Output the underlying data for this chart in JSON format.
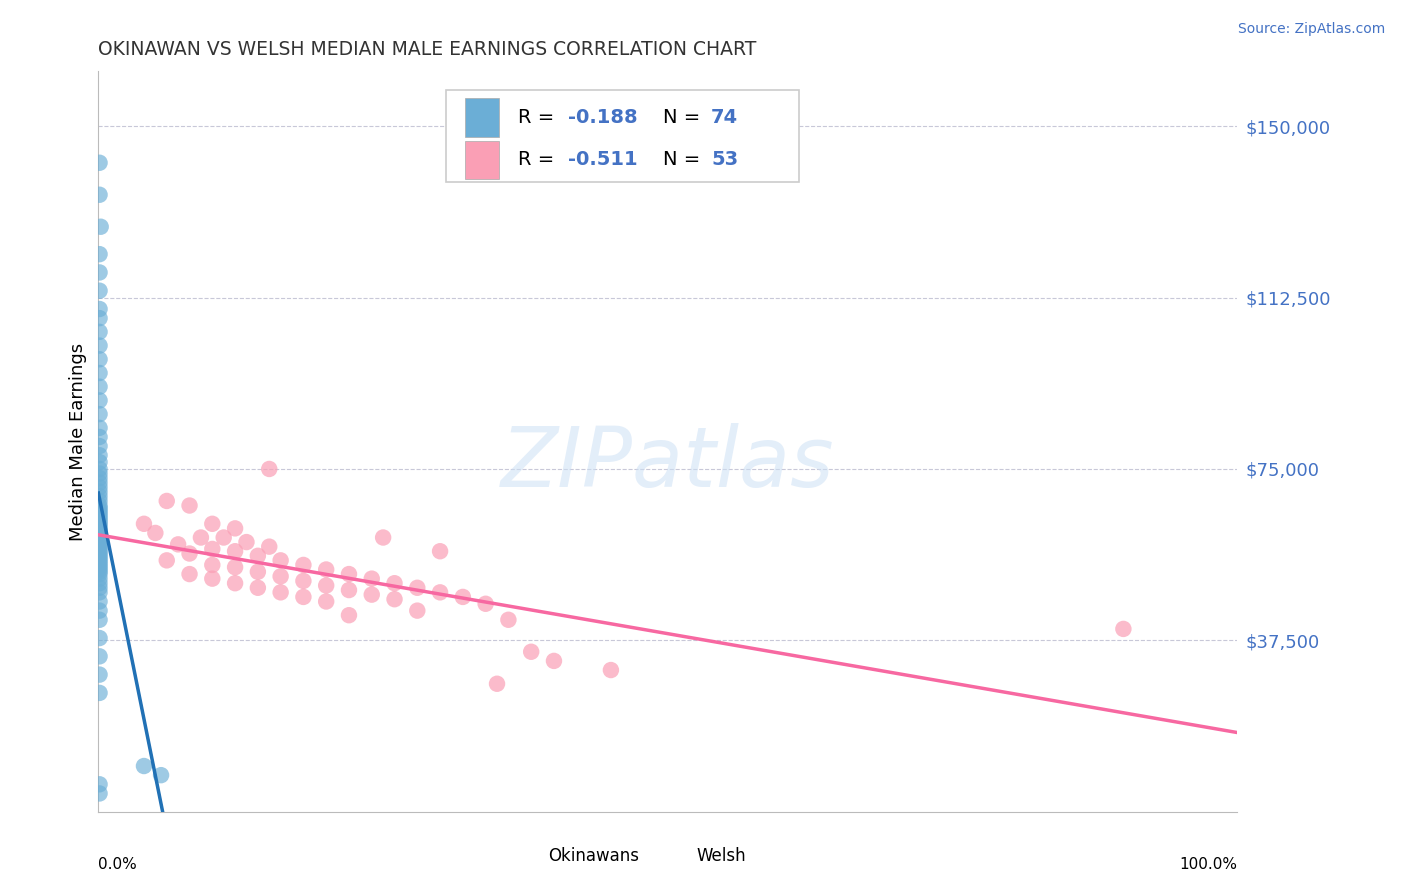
{
  "title": "OKINAWAN VS WELSH MEDIAN MALE EARNINGS CORRELATION CHART",
  "source": "Source: ZipAtlas.com",
  "ylabel": "Median Male Earnings",
  "ytick_values": [
    37500,
    75000,
    112500,
    150000
  ],
  "ytick_labels": [
    "$37,500",
    "$75,000",
    "$112,500",
    "$150,000"
  ],
  "ymin": 0,
  "ymax": 162000,
  "xmin": 0.0,
  "xmax": 1.0,
  "legend_label1": "Okinawans",
  "legend_label2": "Welsh",
  "legend_R1": "-0.188",
  "legend_N1": "74",
  "legend_R2": "-0.511",
  "legend_N2": "53",
  "watermark": "ZIPatlas",
  "okinawan_color": "#6baed6",
  "welsh_color": "#fa9fb5",
  "okinawan_line_color": "#2171b5",
  "welsh_line_color": "#f768a1",
  "background_color": "#ffffff",
  "grid_color": "#c8c8d8",
  "title_color": "#333333",
  "source_color": "#4472C4",
  "legend_value_color": "#4472C4",
  "okinawan_x": [
    0.001,
    0.001,
    0.002,
    0.001,
    0.001,
    0.001,
    0.001,
    0.001,
    0.001,
    0.001,
    0.001,
    0.001,
    0.001,
    0.001,
    0.001,
    0.001,
    0.001,
    0.001,
    0.001,
    0.001,
    0.001,
    0.001,
    0.001,
    0.001,
    0.001,
    0.001,
    0.001,
    0.001,
    0.001,
    0.001,
    0.001,
    0.001,
    0.001,
    0.001,
    0.001,
    0.001,
    0.001,
    0.001,
    0.001,
    0.001,
    0.001,
    0.001,
    0.001,
    0.001,
    0.001,
    0.001,
    0.001,
    0.001,
    0.001,
    0.001,
    0.001,
    0.001,
    0.001,
    0.001,
    0.001,
    0.001,
    0.001,
    0.001,
    0.001,
    0.001,
    0.001,
    0.001,
    0.001,
    0.001,
    0.001,
    0.001,
    0.001,
    0.001,
    0.001,
    0.001,
    0.04,
    0.055,
    0.001,
    0.001
  ],
  "okinawan_y": [
    142000,
    135000,
    128000,
    122000,
    118000,
    114000,
    110000,
    108000,
    105000,
    102000,
    99000,
    96000,
    93000,
    90000,
    87000,
    84000,
    82000,
    80000,
    78000,
    76500,
    75000,
    74000,
    73000,
    72000,
    71000,
    70000,
    69000,
    68000,
    67000,
    66500,
    66000,
    65500,
    65000,
    64500,
    64000,
    63500,
    63000,
    62500,
    62000,
    61500,
    61000,
    60500,
    60000,
    59500,
    59000,
    58500,
    58000,
    57500,
    57000,
    56500,
    56000,
    55500,
    55000,
    54500,
    54000,
    53500,
    53000,
    52500,
    52000,
    51000,
    50000,
    49000,
    48000,
    46000,
    44000,
    42000,
    38000,
    34000,
    30000,
    26000,
    10000,
    8000,
    6000,
    4000
  ],
  "welsh_x": [
    0.04,
    0.06,
    0.08,
    0.1,
    0.12,
    0.05,
    0.09,
    0.11,
    0.13,
    0.07,
    0.15,
    0.1,
    0.12,
    0.08,
    0.14,
    0.16,
    0.06,
    0.18,
    0.1,
    0.12,
    0.2,
    0.14,
    0.08,
    0.22,
    0.16,
    0.1,
    0.24,
    0.18,
    0.12,
    0.26,
    0.2,
    0.14,
    0.28,
    0.22,
    0.16,
    0.3,
    0.24,
    0.18,
    0.32,
    0.26,
    0.2,
    0.34,
    0.28,
    0.22,
    0.36,
    0.3,
    0.15,
    0.25,
    0.38,
    0.4,
    0.45,
    0.9,
    0.35
  ],
  "welsh_y": [
    63000,
    68000,
    67000,
    63000,
    62000,
    61000,
    60000,
    60000,
    59000,
    58500,
    58000,
    57500,
    57000,
    56500,
    56000,
    55000,
    55000,
    54000,
    54000,
    53500,
    53000,
    52500,
    52000,
    52000,
    51500,
    51000,
    51000,
    50500,
    50000,
    50000,
    49500,
    49000,
    49000,
    48500,
    48000,
    48000,
    47500,
    47000,
    47000,
    46500,
    46000,
    45500,
    44000,
    43000,
    42000,
    57000,
    75000,
    60000,
    35000,
    33000,
    31000,
    40000,
    28000
  ],
  "ok_line_x0": 0.0,
  "ok_line_x1": 0.13,
  "wl_line_x0": 0.0,
  "wl_line_x1": 1.0
}
